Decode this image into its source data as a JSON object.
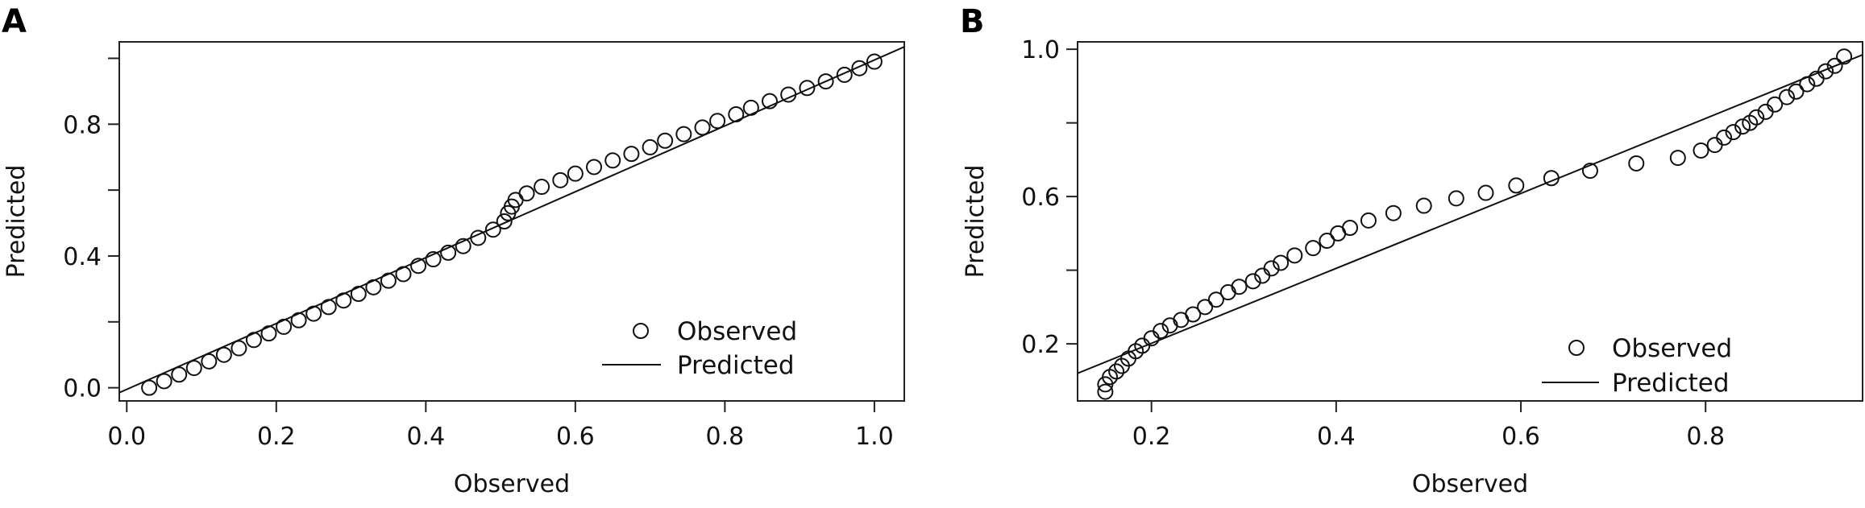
{
  "chart_data": [
    {
      "type": "scatter",
      "panel_label": "A",
      "xlabel": "Observed",
      "ylabel": "Predicted",
      "xlim": [
        -0.01,
        1.04
      ],
      "ylim": [
        -0.04,
        1.05
      ],
      "xticks": [
        0.0,
        0.2,
        0.4,
        0.6,
        0.8,
        1.0
      ],
      "xtick_labels": [
        "0.0",
        "0.2",
        "0.4",
        "0.6",
        "0.8",
        "1.0"
      ],
      "yticks": [
        0.0,
        0.4,
        0.8
      ],
      "ytick_labels": [
        "0.0",
        "0.4",
        "0.8"
      ],
      "ytick_minor": [
        0.2,
        0.6,
        1.0
      ],
      "grid": false,
      "legend": {
        "placement": "bottom-right",
        "entries": [
          "Observed",
          "Predicted"
        ]
      },
      "series": [
        {
          "name": "Observed",
          "style": "open-circle",
          "x": [
            0.03,
            0.05,
            0.07,
            0.09,
            0.11,
            0.13,
            0.15,
            0.17,
            0.19,
            0.21,
            0.23,
            0.25,
            0.27,
            0.29,
            0.31,
            0.33,
            0.35,
            0.37,
            0.39,
            0.41,
            0.43,
            0.45,
            0.47,
            0.49,
            0.505,
            0.51,
            0.515,
            0.52,
            0.535,
            0.555,
            0.58,
            0.6,
            0.625,
            0.65,
            0.675,
            0.7,
            0.72,
            0.745,
            0.77,
            0.79,
            0.815,
            0.835,
            0.86,
            0.885,
            0.91,
            0.935,
            0.96,
            0.98,
            1.0
          ],
          "y": [
            0.0,
            0.02,
            0.04,
            0.06,
            0.08,
            0.1,
            0.12,
            0.145,
            0.165,
            0.185,
            0.205,
            0.225,
            0.245,
            0.265,
            0.285,
            0.305,
            0.325,
            0.345,
            0.37,
            0.39,
            0.41,
            0.43,
            0.455,
            0.48,
            0.505,
            0.53,
            0.55,
            0.57,
            0.59,
            0.61,
            0.63,
            0.65,
            0.67,
            0.69,
            0.71,
            0.73,
            0.75,
            0.77,
            0.79,
            0.81,
            0.83,
            0.85,
            0.87,
            0.89,
            0.91,
            0.93,
            0.95,
            0.97,
            0.99
          ]
        },
        {
          "name": "Predicted",
          "style": "line",
          "x": [
            -0.01,
            1.04
          ],
          "y": [
            -0.015,
            1.035
          ]
        }
      ]
    },
    {
      "type": "scatter",
      "panel_label": "B",
      "xlabel": "Observed",
      "ylabel": "Predicted",
      "xlim": [
        0.12,
        0.97
      ],
      "ylim": [
        0.045,
        1.02
      ],
      "xticks": [
        0.2,
        0.4,
        0.6,
        0.8
      ],
      "xtick_labels": [
        "0.2",
        "0.4",
        "0.6",
        "0.8"
      ],
      "yticks": [
        0.2,
        0.6,
        1.0
      ],
      "ytick_labels": [
        "0.2",
        "0.6",
        "1.0"
      ],
      "ytick_minor": [
        0.4,
        0.8
      ],
      "grid": false,
      "legend": {
        "placement": "bottom-right",
        "entries": [
          "Observed",
          "Predicted"
        ]
      },
      "series": [
        {
          "name": "Observed",
          "style": "open-circle",
          "x": [
            0.15,
            0.15,
            0.155,
            0.162,
            0.168,
            0.175,
            0.183,
            0.19,
            0.2,
            0.21,
            0.22,
            0.232,
            0.245,
            0.258,
            0.27,
            0.283,
            0.295,
            0.31,
            0.32,
            0.33,
            0.34,
            0.355,
            0.375,
            0.39,
            0.402,
            0.415,
            0.435,
            0.462,
            0.495,
            0.53,
            0.562,
            0.595,
            0.633,
            0.675,
            0.725,
            0.77,
            0.795,
            0.81,
            0.82,
            0.83,
            0.84,
            0.848,
            0.855,
            0.865,
            0.875,
            0.888,
            0.898,
            0.91,
            0.92,
            0.93,
            0.94,
            0.95
          ],
          "y": [
            0.07,
            0.09,
            0.11,
            0.125,
            0.14,
            0.16,
            0.18,
            0.195,
            0.215,
            0.235,
            0.25,
            0.265,
            0.28,
            0.3,
            0.32,
            0.34,
            0.355,
            0.37,
            0.385,
            0.405,
            0.42,
            0.44,
            0.46,
            0.48,
            0.5,
            0.515,
            0.535,
            0.555,
            0.575,
            0.595,
            0.61,
            0.63,
            0.65,
            0.67,
            0.69,
            0.705,
            0.725,
            0.74,
            0.76,
            0.775,
            0.79,
            0.8,
            0.815,
            0.83,
            0.85,
            0.87,
            0.885,
            0.905,
            0.92,
            0.94,
            0.955,
            0.98
          ]
        },
        {
          "name": "Predicted",
          "style": "line",
          "x": [
            0.12,
            0.97
          ],
          "y": [
            0.12,
            0.985
          ]
        }
      ]
    }
  ]
}
